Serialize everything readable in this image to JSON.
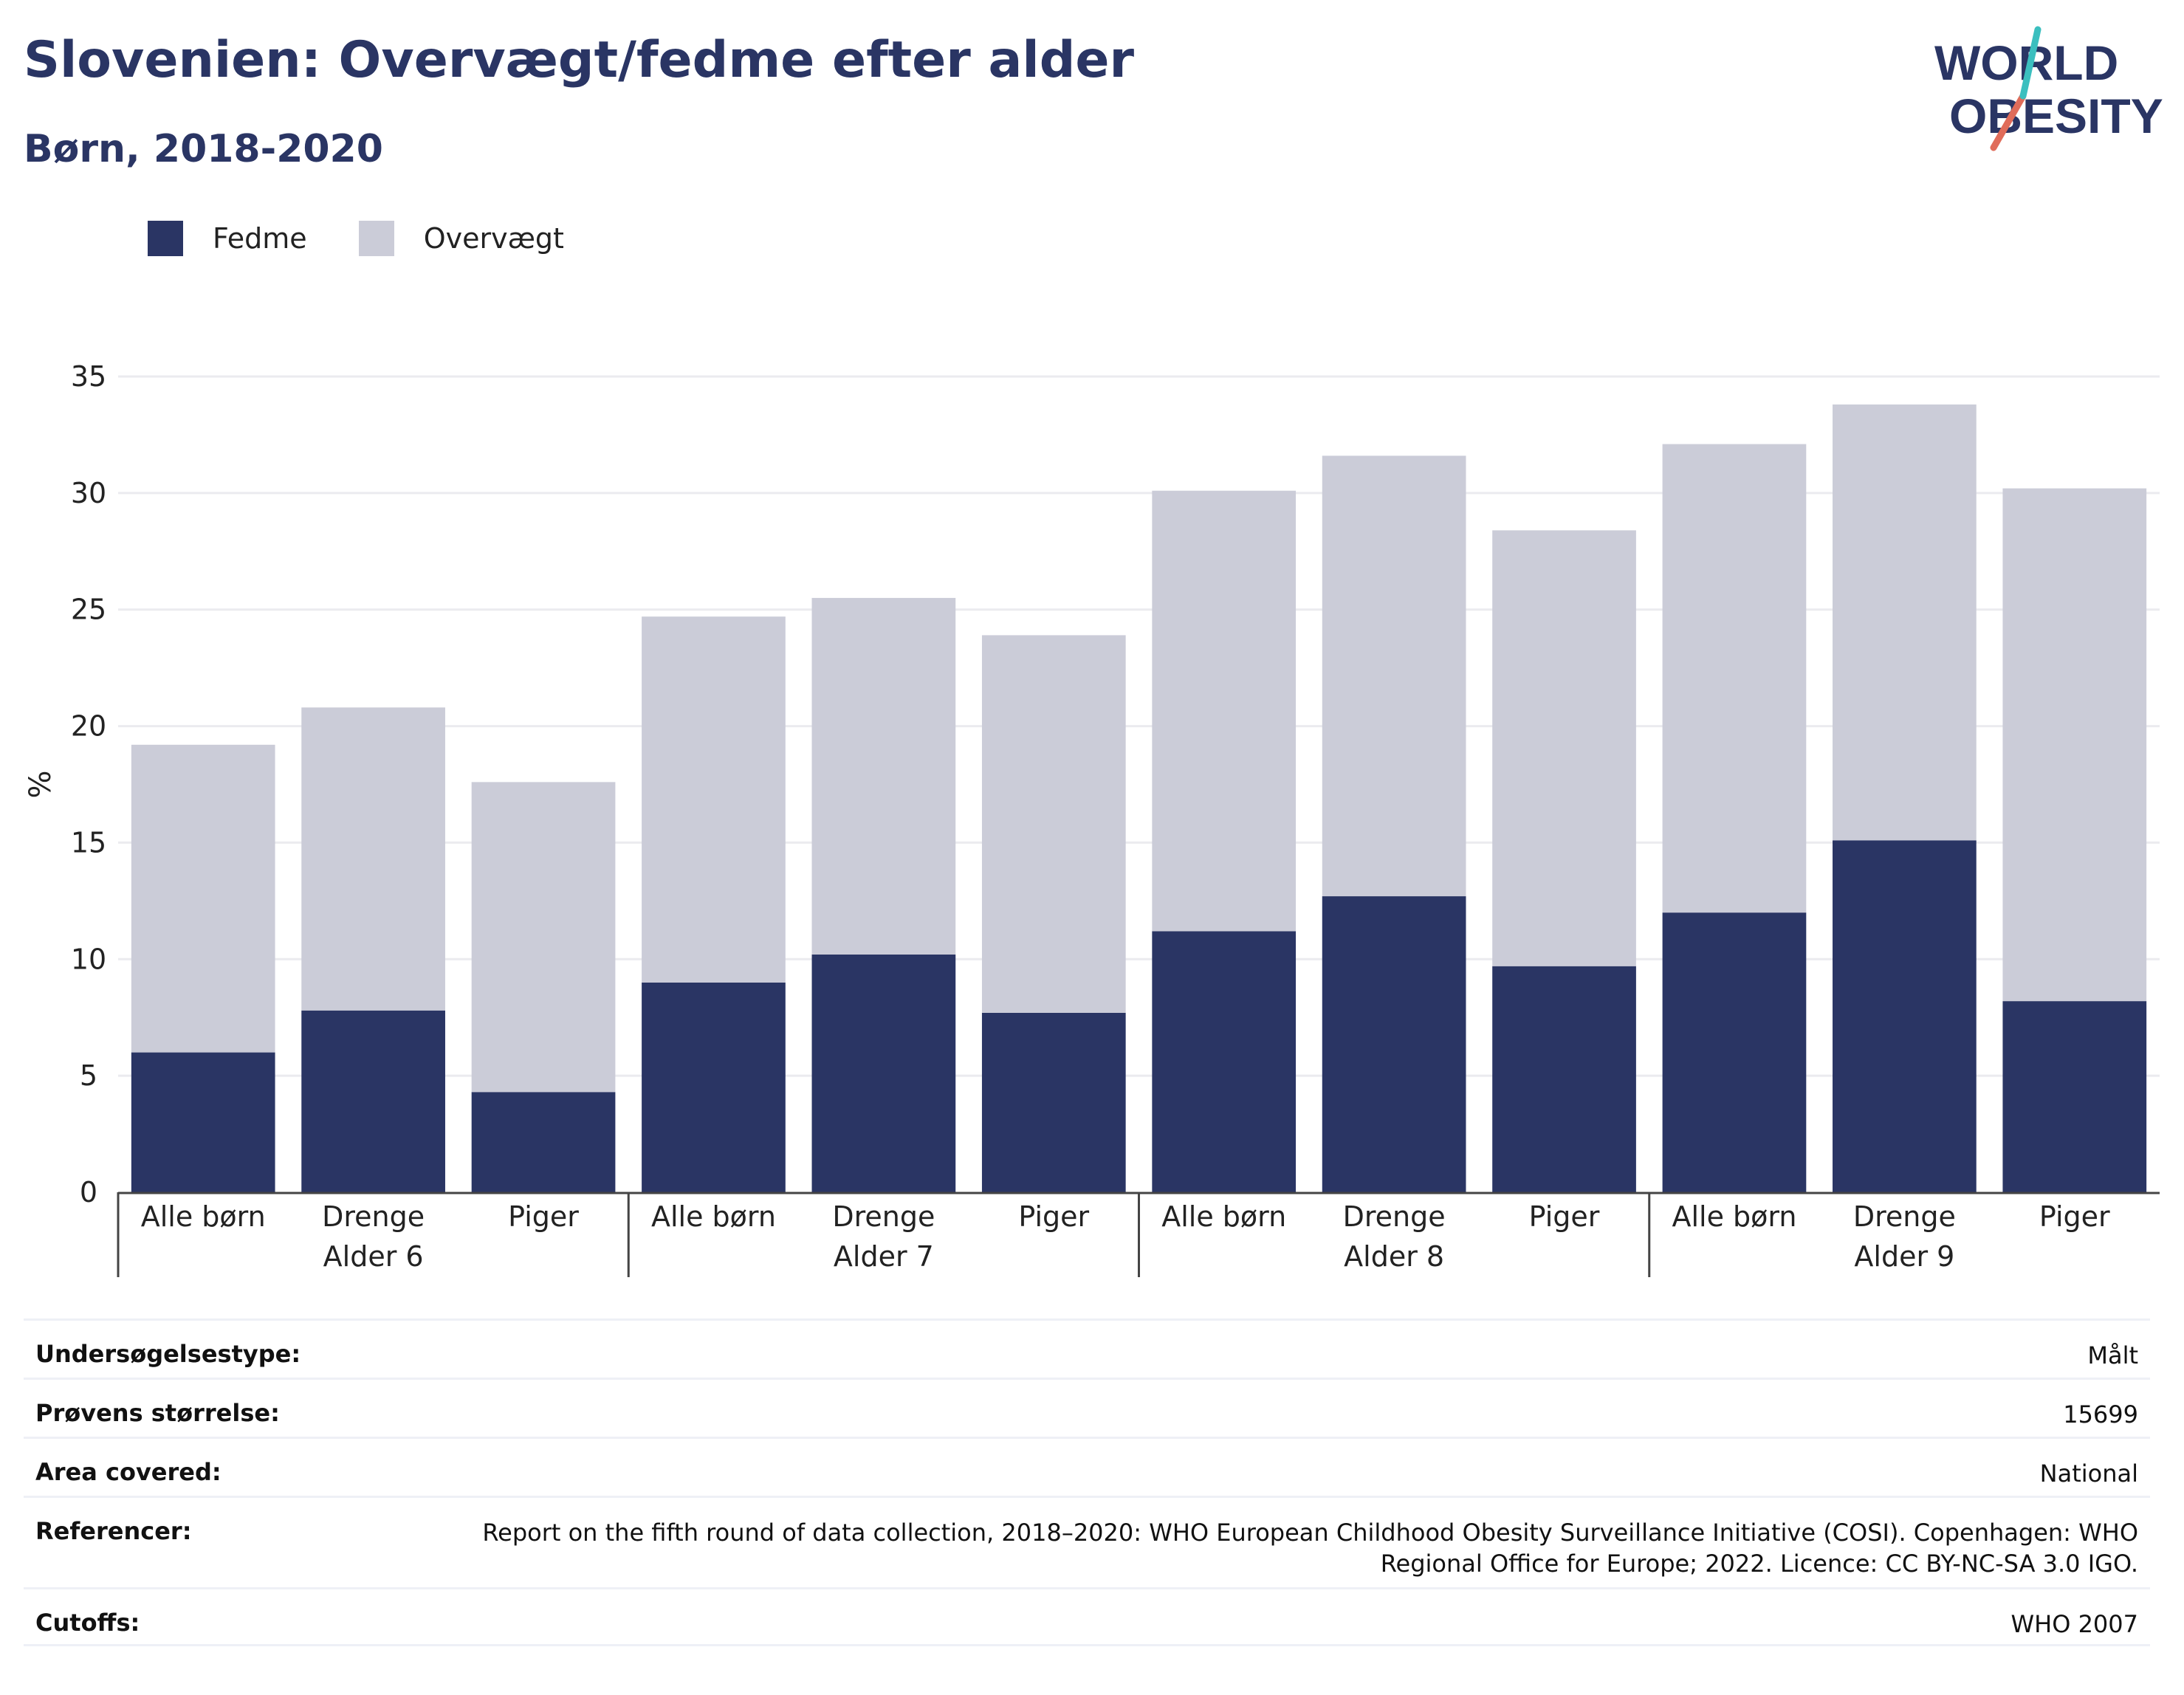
{
  "header": {
    "title": "Slovenien: Overvægt/fedme efter alder",
    "subtitle": "Børn, 2018-2020"
  },
  "logo": {
    "line1": "WORLD",
    "line2": "OBESITY"
  },
  "colors": {
    "fedme": "#2a3564",
    "overvaegt": "#cbccd8",
    "text": "#2a3564",
    "accent_teal": "#3bbfbf",
    "accent_coral": "#e06c5a"
  },
  "chart_data": {
    "type": "bar",
    "stacked": true,
    "ylabel": "%",
    "ylim": [
      0,
      35
    ],
    "yticks": [
      0,
      5,
      10,
      15,
      20,
      25,
      30,
      35
    ],
    "grid": true,
    "legend_position": "top-left",
    "groups": [
      "Alder 6",
      "Alder 7",
      "Alder 8",
      "Alder 9"
    ],
    "categories": [
      "Alle børn",
      "Drenge",
      "Piger",
      "Alle børn",
      "Drenge",
      "Piger",
      "Alle børn",
      "Drenge",
      "Piger",
      "Alle børn",
      "Drenge",
      "Piger"
    ],
    "series": [
      {
        "name": "Fedme",
        "values": [
          6.0,
          7.8,
          4.3,
          9.0,
          10.2,
          7.7,
          11.2,
          12.7,
          9.7,
          12.0,
          15.1,
          8.2
        ]
      },
      {
        "name": "Overvægt",
        "values": [
          13.2,
          13.0,
          13.3,
          15.7,
          15.3,
          16.2,
          18.9,
          18.9,
          18.7,
          20.1,
          18.7,
          22.0
        ]
      }
    ]
  },
  "info": [
    {
      "key": "Undersøgelsestype:",
      "value": "Målt"
    },
    {
      "key": "Prøvens størrelse:",
      "value": "15699"
    },
    {
      "key": "Area covered:",
      "value": "National"
    },
    {
      "key": "Referencer:",
      "value": "Report on the fifth round of data collection, 2018–2020: WHO European Childhood Obesity Surveillance Initiative (COSI). Copenhagen: WHO Regional Office for Europe; 2022. Licence: CC BY-NC-SA 3.0 IGO."
    },
    {
      "key": "Cutoffs:",
      "value": "WHO 2007"
    }
  ]
}
